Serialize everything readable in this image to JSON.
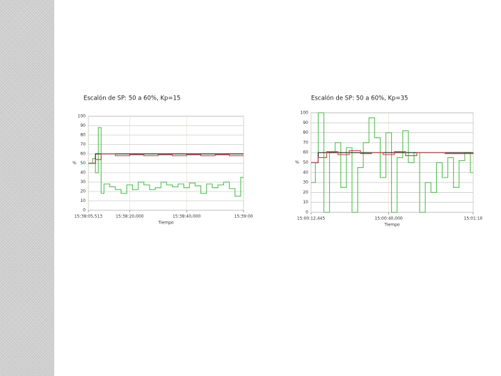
{
  "chart_data": [
    {
      "type": "line",
      "step": true,
      "title": "Escalón de SP: 50 a 60%, Kp=15",
      "xlabel": "Tiempo",
      "ylabel": "%",
      "xlim": [
        56285.513,
        56340
      ],
      "ylim": [
        0,
        100
      ],
      "xticks": [
        {
          "value": 56285.513,
          "label": "15:38:05,513"
        },
        {
          "value": 56300,
          "label": "15:38:20,000"
        },
        {
          "value": 56320,
          "label": "15:38:40,000"
        },
        {
          "value": 56340,
          "label": "15:39:00"
        }
      ],
      "yticks": [
        0,
        10,
        20,
        30,
        40,
        50,
        60,
        70,
        80,
        90,
        100
      ],
      "grid": true,
      "series": [
        {
          "color": "#5ec45e",
          "x": [
            56285.513,
            56287,
            56288,
            56289,
            56290,
            56291,
            56293,
            56295,
            56297,
            56299,
            56301,
            56303,
            56305,
            56307,
            56309,
            56311,
            56313,
            56315,
            56317,
            56319,
            56321,
            56323,
            56325,
            56327,
            56329,
            56331,
            56333,
            56335,
            56337,
            56339,
            56340
          ],
          "values": [
            50,
            55,
            40,
            88,
            18,
            28,
            25,
            22,
            18,
            27,
            22,
            30,
            27,
            22,
            24,
            30,
            27,
            25,
            28,
            24,
            29,
            26,
            18,
            28,
            24,
            27,
            30,
            23,
            15,
            35,
            35
          ]
        },
        {
          "color": "#222222",
          "x": [
            56285.513,
            56288,
            56340
          ],
          "values": [
            50,
            60,
            60
          ]
        },
        {
          "color": "#c0504d",
          "x": [
            56285.513,
            56288,
            56290,
            56295,
            56300,
            56305,
            56310,
            56315,
            56320,
            56325,
            56330,
            56335,
            56340
          ],
          "values": [
            50,
            54,
            60,
            58,
            59,
            58,
            59,
            58,
            59,
            58,
            59,
            58,
            58
          ]
        }
      ]
    },
    {
      "type": "line",
      "step": true,
      "title": "Escalón de SP: 50 a 60%, Kp=35",
      "xlabel": "Tiempo",
      "ylabel": "%",
      "xlim": [
        54012.445,
        54070
      ],
      "ylim": [
        0,
        100
      ],
      "xticks": [
        {
          "value": 54012.445,
          "label": "15:00:12,445"
        },
        {
          "value": 54040,
          "label": "15:00:40,000"
        },
        {
          "value": 54070,
          "label": "15:01:10"
        }
      ],
      "yticks": [
        0,
        10,
        20,
        30,
        40,
        50,
        60,
        70,
        80,
        90,
        100
      ],
      "grid": true,
      "series": [
        {
          "color": "#5ec45e",
          "x": [
            54012.445,
            54014,
            54015,
            54017,
            54019,
            54021,
            54023,
            54025,
            54027,
            54029,
            54031,
            54033,
            54035,
            54037,
            54039,
            54041,
            54043,
            54045,
            54047,
            54049,
            54051,
            54053,
            54055,
            54057,
            54059,
            54061,
            54063,
            54065,
            54067,
            54069,
            54070
          ],
          "values": [
            30,
            50,
            100,
            0,
            60,
            70,
            25,
            65,
            0,
            45,
            70,
            95,
            75,
            35,
            80,
            0,
            55,
            82,
            50,
            60,
            0,
            30,
            20,
            50,
            35,
            55,
            25,
            52,
            60,
            40,
            40
          ]
        },
        {
          "color": "#222222",
          "x": [
            54012.445,
            54015,
            54070
          ],
          "values": [
            50,
            60,
            60
          ]
        },
        {
          "color": "#c0504d",
          "x": [
            54012.445,
            54015,
            54018,
            54022,
            54026,
            54030,
            54034,
            54038,
            54042,
            54046,
            54050,
            54060,
            54070
          ],
          "values": [
            50,
            55,
            61,
            58,
            62,
            59,
            60,
            58,
            61,
            57,
            60,
            59,
            60
          ]
        }
      ]
    }
  ]
}
